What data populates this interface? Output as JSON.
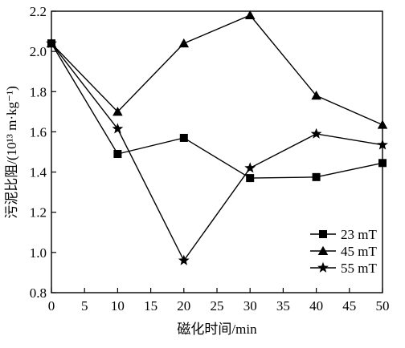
{
  "chart_data": {
    "type": "line",
    "xlabel": "磁化时间/min",
    "ylabel": "污泥比阻/(10¹³ m·kg⁻¹)",
    "xlim": [
      0,
      50
    ],
    "ylim": [
      0.8,
      2.2
    ],
    "x_ticks": [
      "0",
      "5",
      "10",
      "15",
      "20",
      "25",
      "30",
      "35",
      "40",
      "45",
      "50"
    ],
    "y_ticks": [
      "0.8",
      "1.0",
      "1.2",
      "1.4",
      "1.6",
      "1.8",
      "2.0",
      "2.2"
    ],
    "grid": false,
    "legend_position": "bottom-right",
    "x": [
      0,
      10,
      20,
      30,
      40,
      50
    ],
    "series": [
      {
        "name": "23 mT",
        "marker": "square",
        "values": [
          2.04,
          1.49,
          1.57,
          1.37,
          1.375,
          1.445
        ]
      },
      {
        "name": "45 mT",
        "marker": "triangle",
        "values": [
          2.04,
          1.7,
          2.04,
          2.18,
          1.78,
          1.635
        ]
      },
      {
        "name": "55 mT",
        "marker": "star",
        "values": [
          2.04,
          1.615,
          0.96,
          1.42,
          1.59,
          1.535
        ]
      }
    ],
    "line_color": "#000000"
  }
}
